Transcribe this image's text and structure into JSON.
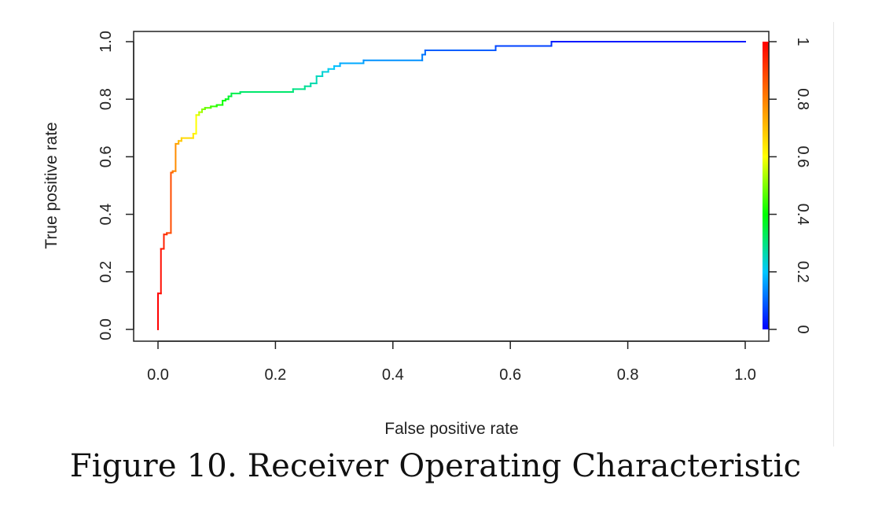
{
  "caption": "Figure 10. Receiver Operating Characteristic",
  "chart_data": {
    "type": "line",
    "xlabel": "False positive rate",
    "ylabel": "True positive rate",
    "xlim": [
      0,
      1
    ],
    "ylim": [
      0,
      1
    ],
    "x_ticks": [
      "0.0",
      "0.2",
      "0.4",
      "0.6",
      "0.8",
      "1.0"
    ],
    "y_ticks": [
      "0.0",
      "0.2",
      "0.4",
      "0.6",
      "0.8",
      "1.0"
    ],
    "colorbar": {
      "position": "right",
      "range": [
        0,
        1
      ],
      "ticks": [
        "0",
        "0.2",
        "0.4",
        "0.6",
        "0.8",
        "1"
      ],
      "colormap": "rainbow",
      "colors": [
        "#0000ff",
        "#00c8ff",
        "#00ff00",
        "#ffff00",
        "#ff8000",
        "#ff0000"
      ]
    },
    "grid": false,
    "series": [
      {
        "x": [
          0.0,
          0.0,
          0.005,
          0.005,
          0.01,
          0.01,
          0.015,
          0.015,
          0.022,
          0.022,
          0.025,
          0.025,
          0.03,
          0.03,
          0.035,
          0.035,
          0.04,
          0.04,
          0.06,
          0.06,
          0.065,
          0.065,
          0.07,
          0.07,
          0.075,
          0.075,
          0.08,
          0.08,
          0.09,
          0.09,
          0.1,
          0.1,
          0.11,
          0.11,
          0.115,
          0.115,
          0.12,
          0.12,
          0.125,
          0.125,
          0.14,
          0.14,
          0.23,
          0.23,
          0.25,
          0.25,
          0.26,
          0.26,
          0.27,
          0.27,
          0.28,
          0.28,
          0.29,
          0.29,
          0.3,
          0.3,
          0.31,
          0.31,
          0.35,
          0.35,
          0.45,
          0.45,
          0.455,
          0.455,
          0.575,
          0.575,
          0.67,
          0.67,
          1.0
        ],
        "y": [
          0.0,
          0.125,
          0.125,
          0.28,
          0.28,
          0.33,
          0.33,
          0.335,
          0.335,
          0.545,
          0.545,
          0.55,
          0.55,
          0.645,
          0.645,
          0.655,
          0.655,
          0.665,
          0.665,
          0.68,
          0.68,
          0.745,
          0.745,
          0.755,
          0.755,
          0.765,
          0.765,
          0.77,
          0.77,
          0.775,
          0.775,
          0.78,
          0.78,
          0.795,
          0.795,
          0.8,
          0.8,
          0.81,
          0.81,
          0.82,
          0.82,
          0.825,
          0.825,
          0.835,
          0.835,
          0.845,
          0.845,
          0.855,
          0.855,
          0.88,
          0.88,
          0.895,
          0.895,
          0.905,
          0.905,
          0.915,
          0.915,
          0.925,
          0.925,
          0.935,
          0.935,
          0.955,
          0.955,
          0.97,
          0.97,
          0.985,
          0.985,
          1.0,
          1.0
        ],
        "threshold": [
          1.0,
          1.0,
          0.98,
          0.98,
          0.95,
          0.95,
          0.92,
          0.92,
          0.88,
          0.88,
          0.83,
          0.83,
          0.78,
          0.78,
          0.72,
          0.72,
          0.68,
          0.68,
          0.64,
          0.64,
          0.6,
          0.6,
          0.56,
          0.56,
          0.52,
          0.52,
          0.49,
          0.49,
          0.46,
          0.46,
          0.43,
          0.43,
          0.41,
          0.41,
          0.39,
          0.39,
          0.37,
          0.37,
          0.35,
          0.35,
          0.33,
          0.33,
          0.3,
          0.3,
          0.29,
          0.29,
          0.27,
          0.27,
          0.26,
          0.26,
          0.24,
          0.24,
          0.22,
          0.22,
          0.2,
          0.2,
          0.18,
          0.18,
          0.16,
          0.16,
          0.13,
          0.13,
          0.11,
          0.11,
          0.08,
          0.08,
          0.05,
          0.05,
          0.0
        ]
      }
    ]
  }
}
